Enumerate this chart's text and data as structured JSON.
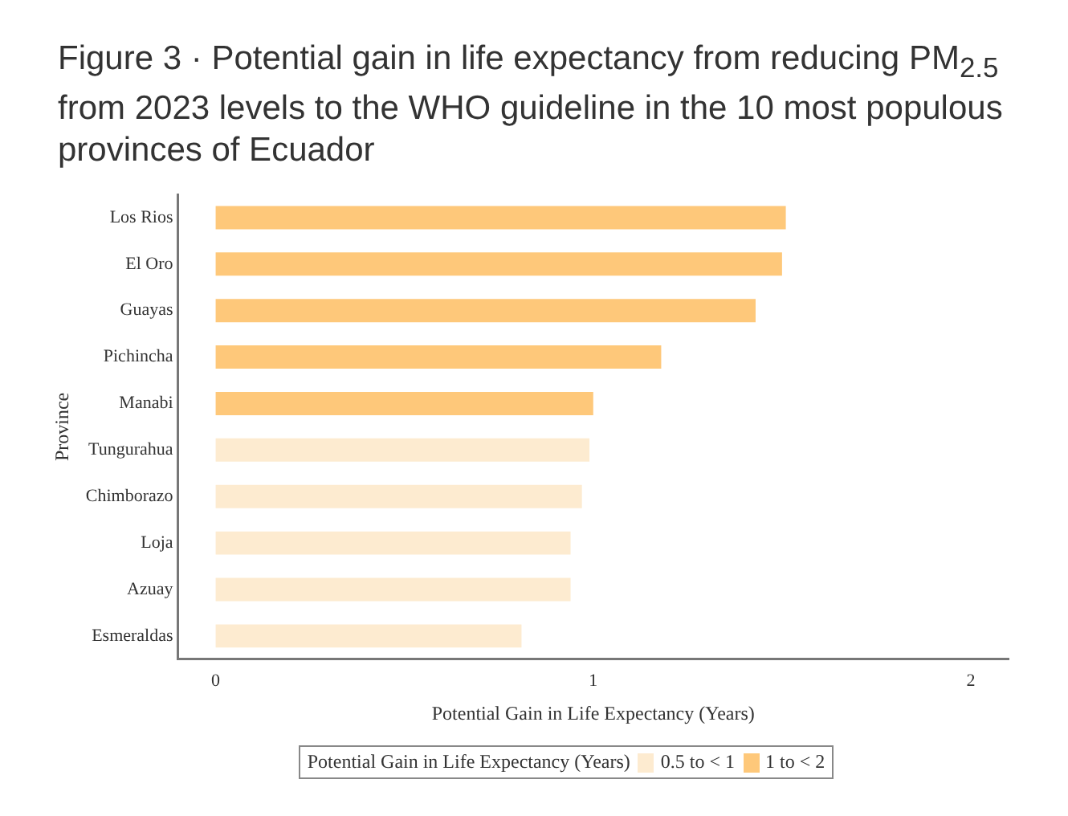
{
  "chart_data": {
    "type": "bar",
    "orientation": "horizontal",
    "title": "Figure 3 · Potential gain in life expectancy from reducing PM$_{2.5}$ from 2023 levels to the WHO guideline in the 10 most populous provinces of Ecuador",
    "xlabel": "Potential Gain in Life Expectancy (Years)",
    "ylabel": "Province",
    "legend_title": "Potential Gain in Life Expectancy (Years)",
    "categories": [
      "Los Rios",
      "El Oro",
      "Guayas",
      "Pichincha",
      "Manabi",
      "Tungurahua",
      "Chimborazo",
      "Loja",
      "Azuay",
      "Esmeraldas"
    ],
    "series": [
      {
        "name": "0.5 to < 1",
        "color": "#fdebd0",
        "values": [
          null,
          null,
          null,
          null,
          null,
          0.99,
          0.97,
          0.94,
          0.94,
          0.81
        ]
      },
      {
        "name": "1 to < 2",
        "color": "#fec87a",
        "values": [
          1.51,
          1.5,
          1.43,
          1.18,
          1.0,
          null,
          null,
          null,
          null,
          null
        ]
      }
    ],
    "xlim": [
      -0.1,
      2.1
    ],
    "xticks": [
      0,
      1,
      2
    ],
    "grid": false,
    "legend": "bottom"
  }
}
